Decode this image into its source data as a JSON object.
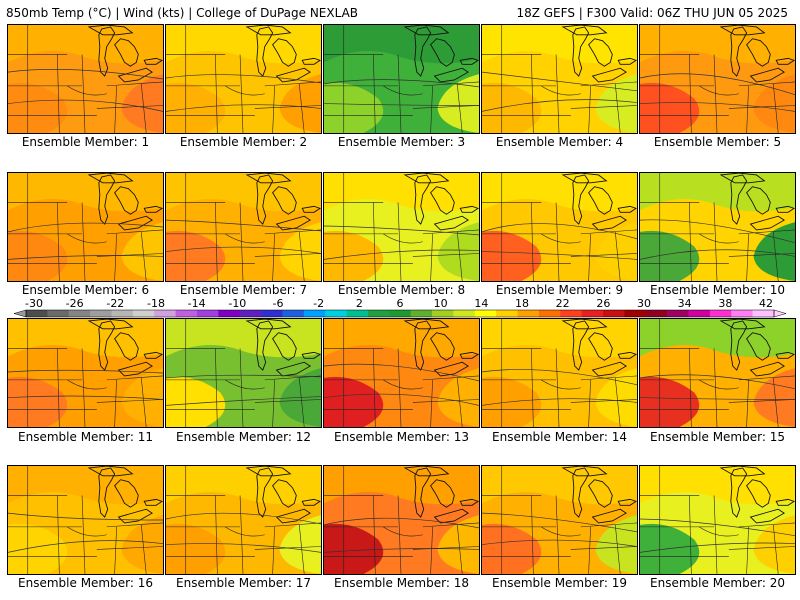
{
  "header": {
    "left": "850mb Temp (°C) | Wind (kts) | College of DuPage NEXLAB",
    "right": "18Z GEFS | F300 Valid: 06Z THU JUN 05 2025"
  },
  "colorbar": {
    "labels": [
      "-30",
      "-26",
      "-22",
      "-18",
      "-14",
      "-10",
      "-6",
      "-2",
      "2",
      "6",
      "10",
      "14",
      "18",
      "22",
      "26",
      "30",
      "34",
      "38",
      "42"
    ],
    "colors": [
      "#4d4d4d",
      "#6a6a6a",
      "#858585",
      "#9e9e9e",
      "#b6b6b6",
      "#cfcfcf",
      "#d0a0e0",
      "#c060e0",
      "#a040e0",
      "#8000c0",
      "#6020c0",
      "#3030d0",
      "#2060e0",
      "#00a0ff",
      "#00d0e0",
      "#00c090",
      "#20a040",
      "#209a30",
      "#60b030",
      "#a0d020",
      "#d0e820",
      "#ffff00",
      "#ffd000",
      "#ffa000",
      "#ff7000",
      "#ff4020",
      "#e82020",
      "#c81010",
      "#a00000",
      "#900020",
      "#a00060",
      "#d000a0",
      "#ff30d0",
      "#ff80f0",
      "#ffc0ff"
    ]
  },
  "panels": [
    {
      "label": "Ensemble Member: 1",
      "colors": [
        "#ff9b10",
        "#ffb000",
        "#ff8c10",
        "#ff7a20"
      ]
    },
    {
      "label": "Ensemble Member: 2",
      "colors": [
        "#ffc400",
        "#ffd800",
        "#ffb000",
        "#ffa000"
      ]
    },
    {
      "label": "Ensemble Member: 3",
      "colors": [
        "#3fb03a",
        "#2e9c36",
        "#8cd22a",
        "#d8ec22"
      ]
    },
    {
      "label": "Ensemble Member: 4",
      "colors": [
        "#ffd200",
        "#ffe400",
        "#ffb800",
        "#d8ec22"
      ]
    },
    {
      "label": "Ensemble Member: 5",
      "colors": [
        "#ff9a10",
        "#ffb000",
        "#ff5020",
        "#ff8810"
      ]
    },
    {
      "label": "Ensemble Member: 6",
      "colors": [
        "#ffa000",
        "#ffb800",
        "#ff8810",
        "#ffc400"
      ]
    },
    {
      "label": "Ensemble Member: 7",
      "colors": [
        "#ffb000",
        "#ffc400",
        "#ff7a20",
        "#ffd400"
      ]
    },
    {
      "label": "Ensemble Member: 8",
      "colors": [
        "#e8f020",
        "#ffe000",
        "#ffb800",
        "#b0dc20"
      ]
    },
    {
      "label": "Ensemble Member: 9",
      "colors": [
        "#ffc800",
        "#ffe000",
        "#ff6020",
        "#ffd000"
      ]
    },
    {
      "label": "Ensemble Member: 10",
      "colors": [
        "#ffd400",
        "#b8e020",
        "#4aa838",
        "#2e9c36"
      ]
    },
    {
      "label": "Ensemble Member: 11",
      "colors": [
        "#ffa000",
        "#ffc000",
        "#ff7a20",
        "#ffb000"
      ]
    },
    {
      "label": "Ensemble Member: 12",
      "colors": [
        "#78c030",
        "#c8e420",
        "#ffe000",
        "#4aa838"
      ]
    },
    {
      "label": "Ensemble Member: 13",
      "colors": [
        "#ff8810",
        "#ffa800",
        "#e02020",
        "#ffb000"
      ]
    },
    {
      "label": "Ensemble Member: 14",
      "colors": [
        "#ffc000",
        "#ffd400",
        "#ffa000",
        "#ffdc00"
      ]
    },
    {
      "label": "Ensemble Member: 15",
      "colors": [
        "#ffb000",
        "#8cd22a",
        "#e83020",
        "#ff7a20"
      ]
    },
    {
      "label": "Ensemble Member: 16",
      "colors": [
        "#ffc000",
        "#ffb000",
        "#ffd400",
        "#ffa800"
      ]
    },
    {
      "label": "Ensemble Member: 17",
      "colors": [
        "#ffb800",
        "#ffd000",
        "#ffa000",
        "#e8f020"
      ]
    },
    {
      "label": "Ensemble Member: 18",
      "colors": [
        "#ff7a20",
        "#ffa000",
        "#c81818",
        "#ffb800"
      ]
    },
    {
      "label": "Ensemble Member: 19",
      "colors": [
        "#ffb000",
        "#ffc800",
        "#ff7020",
        "#c8e420"
      ]
    },
    {
      "label": "Ensemble Member: 20",
      "colors": [
        "#e8f020",
        "#ffe000",
        "#3fb03a",
        "#ffd000"
      ]
    }
  ]
}
